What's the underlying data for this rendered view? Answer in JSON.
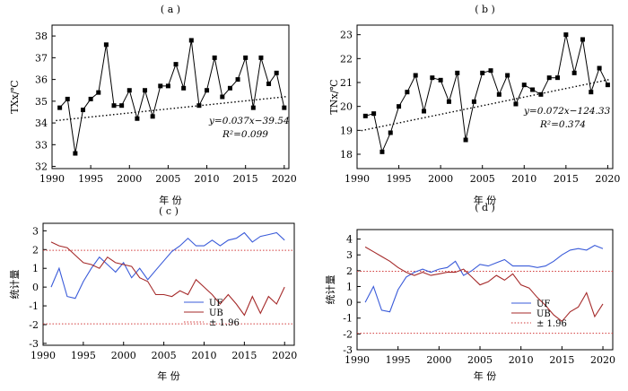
{
  "chart_data": [
    {
      "id": "a",
      "panel_label": "( a )",
      "type": "line",
      "ylabel": "TXx/℃",
      "xlabel": "年 份",
      "xlim": [
        1990,
        2020.6
      ],
      "ylim": [
        31.9,
        38.5
      ],
      "xticks": [
        1990,
        1995,
        2000,
        2005,
        2010,
        2015,
        2020
      ],
      "yticks": [
        32,
        33,
        34,
        35,
        36,
        37,
        38
      ],
      "x": [
        1991,
        1992,
        1993,
        1994,
        1995,
        1996,
        1997,
        1998,
        1999,
        2000,
        2001,
        2002,
        2003,
        2004,
        2005,
        2006,
        2007,
        2008,
        2009,
        2010,
        2011,
        2012,
        2013,
        2014,
        2015,
        2016,
        2017,
        2018,
        2019,
        2020
      ],
      "series": [
        {
          "values": [
            34.7,
            35.1,
            32.6,
            34.6,
            35.1,
            35.4,
            37.6,
            34.8,
            34.8,
            35.5,
            34.2,
            35.5,
            34.3,
            35.7,
            35.7,
            36.7,
            35.6,
            37.8,
            34.8,
            35.5,
            37.0,
            35.2,
            35.6,
            36.0,
            37.0,
            34.7,
            37.0,
            35.8,
            36.3,
            34.7
          ]
        }
      ],
      "trend": {
        "slope": 0.037,
        "intercept": -39.54
      },
      "equation": "y=0.037x−39.54",
      "r2": "R²=0.099"
    },
    {
      "id": "b",
      "panel_label": "( b )",
      "type": "line",
      "ylabel": "TNx/℃",
      "xlabel": "年 份",
      "xlim": [
        1990,
        2020.6
      ],
      "ylim": [
        17.4,
        23.4
      ],
      "xticks": [
        1990,
        1995,
        2000,
        2005,
        2010,
        2015,
        2020
      ],
      "yticks": [
        18,
        19,
        20,
        21,
        22,
        23
      ],
      "x": [
        1991,
        1992,
        1993,
        1994,
        1995,
        1996,
        1997,
        1998,
        1999,
        2000,
        2001,
        2002,
        2003,
        2004,
        2005,
        2006,
        2007,
        2008,
        2009,
        2010,
        2011,
        2012,
        2013,
        2014,
        2015,
        2016,
        2017,
        2018,
        2019,
        2020
      ],
      "series": [
        {
          "values": [
            19.6,
            19.7,
            18.1,
            18.9,
            20.0,
            20.6,
            21.3,
            19.8,
            21.2,
            21.1,
            20.2,
            21.4,
            18.6,
            20.2,
            21.4,
            21.5,
            20.5,
            21.3,
            20.1,
            20.9,
            20.7,
            20.5,
            21.2,
            21.2,
            23.0,
            21.4,
            22.8,
            20.6,
            21.6,
            20.9
          ]
        }
      ],
      "trend": {
        "slope": 0.072,
        "intercept": -124.33
      },
      "equation": "y=0.072x−124.33",
      "r2": "R²=0.374"
    },
    {
      "id": "c",
      "panel_label": "( c )",
      "type": "line",
      "ylabel": "统计量",
      "xlabel": "年 份",
      "xlim": [
        1990,
        2021.2
      ],
      "ylim": [
        -3.1,
        3.4
      ],
      "xticks": [
        1990,
        1995,
        2000,
        2005,
        2010,
        2015,
        2020
      ],
      "yticks": [
        -3,
        -2,
        -1,
        0,
        1,
        2,
        3
      ],
      "x": [
        1991,
        1992,
        1993,
        1994,
        1995,
        1996,
        1997,
        1998,
        1999,
        2000,
        2001,
        2002,
        2003,
        2004,
        2005,
        2006,
        2007,
        2008,
        2009,
        2010,
        2011,
        2012,
        2013,
        2014,
        2015,
        2016,
        2017,
        2018,
        2019,
        2020
      ],
      "series": [
        {
          "name": "UF",
          "color": "#3a5bd9",
          "values": [
            0.0,
            1.0,
            -0.5,
            -0.6,
            0.3,
            1.0,
            1.6,
            1.2,
            0.8,
            1.3,
            0.5,
            1.0,
            0.4,
            0.9,
            1.4,
            1.9,
            2.2,
            2.6,
            2.2,
            2.2,
            2.5,
            2.2,
            2.5,
            2.6,
            2.9,
            2.4,
            2.7,
            2.8,
            2.9,
            2.5
          ]
        },
        {
          "name": "UB",
          "color": "#a52a2a",
          "values": [
            2.4,
            2.2,
            2.1,
            1.7,
            1.3,
            1.2,
            1.0,
            1.6,
            1.3,
            1.2,
            1.1,
            0.5,
            0.3,
            -0.4,
            -0.4,
            -0.5,
            -0.2,
            -0.4,
            0.4,
            0.0,
            -0.4,
            -0.9,
            -0.4,
            -0.9,
            -1.5,
            -0.5,
            -1.4,
            -0.5,
            -0.9,
            0.0
          ]
        }
      ],
      "threshold": {
        "label": "± 1.96",
        "value": 1.96,
        "color": "#d23c3c"
      }
    },
    {
      "id": "d",
      "panel_label": "( d )",
      "type": "line",
      "ylabel": "统计量",
      "xlabel": "年 份",
      "xlim": [
        1990,
        2021.2
      ],
      "ylim": [
        -3.0,
        4.6
      ],
      "xticks": [
        1990,
        1995,
        2000,
        2005,
        2010,
        2015,
        2020
      ],
      "yticks": [
        -3,
        -2,
        -1,
        0,
        1,
        2,
        3,
        4
      ],
      "x": [
        1991,
        1992,
        1993,
        1994,
        1995,
        1996,
        1997,
        1998,
        1999,
        2000,
        2001,
        2002,
        2003,
        2004,
        2005,
        2006,
        2007,
        2008,
        2009,
        2010,
        2011,
        2012,
        2013,
        2014,
        2015,
        2016,
        2017,
        2018,
        2019,
        2020
      ],
      "series": [
        {
          "name": "UF",
          "color": "#3a5bd9",
          "values": [
            0.0,
            1.0,
            -0.5,
            -0.6,
            0.8,
            1.6,
            1.9,
            2.1,
            1.9,
            2.1,
            2.2,
            2.6,
            1.7,
            2.0,
            2.4,
            2.3,
            2.5,
            2.7,
            2.3,
            2.3,
            2.3,
            2.2,
            2.3,
            2.6,
            3.0,
            3.3,
            3.4,
            3.3,
            3.6,
            3.4
          ]
        },
        {
          "name": "UB",
          "color": "#a52a2a",
          "values": [
            3.5,
            3.2,
            2.9,
            2.6,
            2.2,
            1.9,
            1.7,
            1.9,
            1.7,
            1.8,
            1.9,
            1.9,
            2.1,
            1.6,
            1.1,
            1.3,
            1.7,
            1.4,
            1.8,
            1.1,
            0.9,
            0.3,
            -0.2,
            -0.8,
            -1.2,
            -0.6,
            -0.3,
            0.6,
            -0.9,
            -0.1
          ]
        }
      ],
      "threshold": {
        "label": "± 1.96",
        "value": 1.96,
        "color": "#d23c3c"
      }
    }
  ]
}
